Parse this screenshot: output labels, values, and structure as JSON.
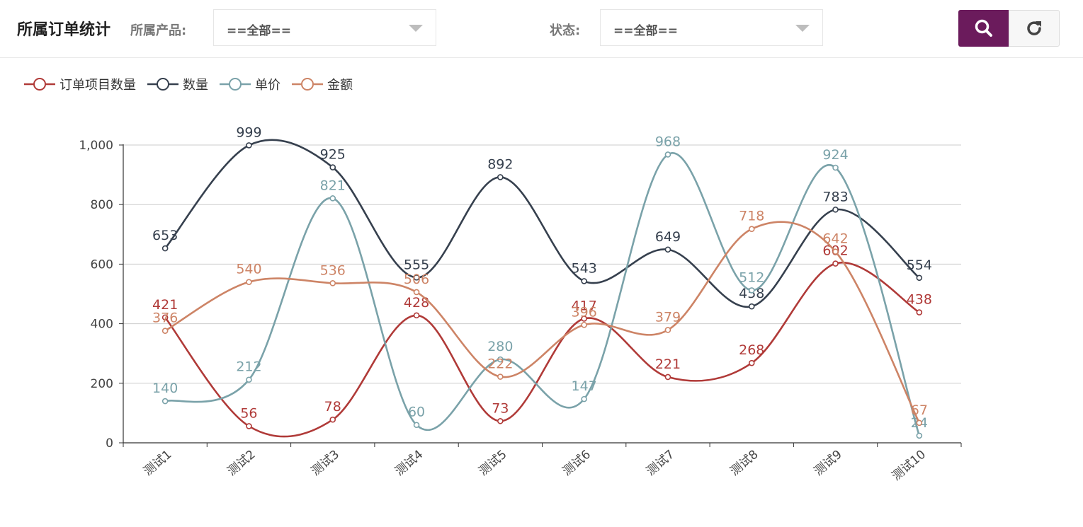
{
  "header": {
    "title": "所属订单统计",
    "product_label": "所属产品:",
    "product_value": "==全部==",
    "status_label": "状态:",
    "status_value": "==全部==",
    "search_icon": "search-icon",
    "reset_icon": "refresh-icon"
  },
  "colors": {
    "accent": "#6b1b5c",
    "series": [
      "#b03a38",
      "#36404e",
      "#7aa2a9",
      "#cd8466"
    ]
  },
  "chart_data": {
    "type": "line",
    "smooth": true,
    "categories": [
      "测试1",
      "测试2",
      "测试3",
      "测试4",
      "测试5",
      "测试6",
      "测试7",
      "测试8",
      "测试9",
      "测试10"
    ],
    "series": [
      {
        "name": "订单项目数量",
        "values": [
          421,
          56,
          78,
          428,
          73,
          417,
          221,
          268,
          602,
          438
        ]
      },
      {
        "name": "数量",
        "values": [
          653,
          999,
          925,
          555,
          892,
          543,
          649,
          458,
          783,
          554
        ]
      },
      {
        "name": "单价",
        "values": [
          140,
          212,
          821,
          60,
          280,
          147,
          968,
          512,
          924,
          24
        ]
      },
      {
        "name": "金额",
        "values": [
          376,
          540,
          536,
          506,
          222,
          396,
          379,
          718,
          642,
          67
        ]
      }
    ],
    "ylim": [
      0,
      1000
    ],
    "yticks": [
      0,
      200,
      400,
      600,
      800,
      1000
    ],
    "ytick_labels": [
      "0",
      "200",
      "400",
      "600",
      "800",
      "1,000"
    ],
    "grid": true,
    "legend_position": "top-left",
    "xlabel": "",
    "ylabel": ""
  }
}
